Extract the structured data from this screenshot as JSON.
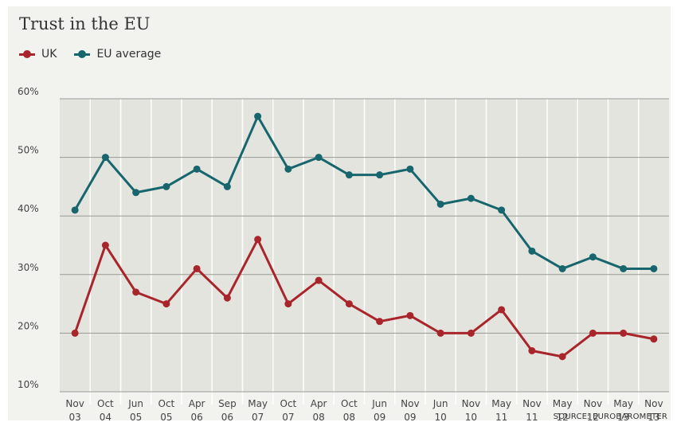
{
  "chart_data": {
    "type": "line",
    "title": "Trust in the EU",
    "xlabel": "",
    "ylabel": "",
    "ylim": [
      10,
      60
    ],
    "yticks": [
      "60%",
      "50%",
      "40%",
      "30%",
      "20%",
      "10%"
    ],
    "ytick_values": [
      60,
      50,
      40,
      30,
      20,
      10
    ],
    "grid": true,
    "legend_placement": "top-left",
    "categories": [
      [
        "Nov",
        "03"
      ],
      [
        "Oct",
        "04"
      ],
      [
        "Jun",
        "05"
      ],
      [
        "Oct",
        "05"
      ],
      [
        "Apr",
        "06"
      ],
      [
        "Sep",
        "06"
      ],
      [
        "May",
        "07"
      ],
      [
        "Oct",
        "07"
      ],
      [
        "Apr",
        "08"
      ],
      [
        "Oct",
        "08"
      ],
      [
        "Jun",
        "09"
      ],
      [
        "Nov",
        "09"
      ],
      [
        "Jun",
        "10"
      ],
      [
        "Nov",
        "10"
      ],
      [
        "May",
        "11"
      ],
      [
        "Nov",
        "11"
      ],
      [
        "May",
        "12"
      ],
      [
        "Nov",
        "12"
      ],
      [
        "May",
        "13"
      ],
      [
        "Nov",
        "13"
      ]
    ],
    "series": [
      {
        "name": "UK",
        "color": "#a8262b",
        "values": [
          20,
          35,
          27,
          25,
          31,
          26,
          36,
          25,
          29,
          25,
          22,
          23,
          20,
          20,
          24,
          17,
          16,
          20,
          20,
          19
        ]
      },
      {
        "name": "EU average",
        "color": "#17666d",
        "values": [
          41,
          50,
          44,
          45,
          48,
          45,
          57,
          48,
          50,
          47,
          47,
          48,
          42,
          43,
          41,
          34,
          31,
          33,
          31,
          31
        ]
      }
    ],
    "source": "SOURCE: EUROBAROMETER"
  }
}
